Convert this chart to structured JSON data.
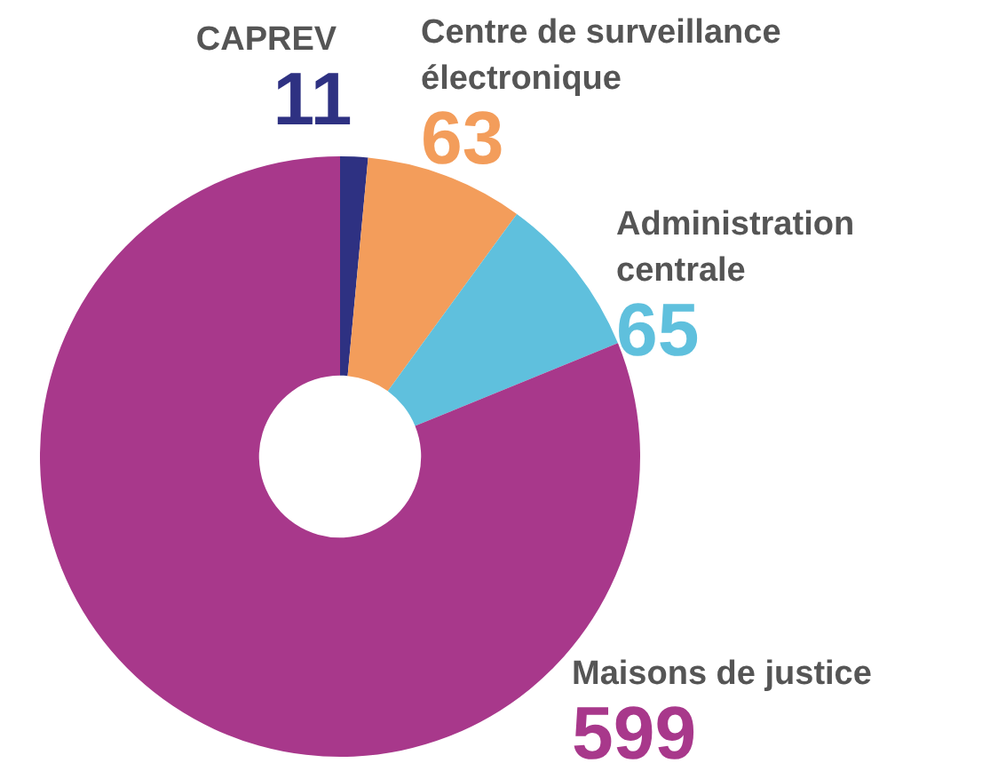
{
  "chart_data": {
    "type": "donut",
    "categories": [
      "CAPREV",
      "Centre de surveillance électronique",
      "Administration centrale",
      "Maisons de justice"
    ],
    "values": [
      11,
      63,
      65,
      599
    ],
    "colors": [
      "#2e3182",
      "#f39d5b",
      "#5fc0dd",
      "#a8388b"
    ],
    "data_labels": true,
    "legend": false
  }
}
